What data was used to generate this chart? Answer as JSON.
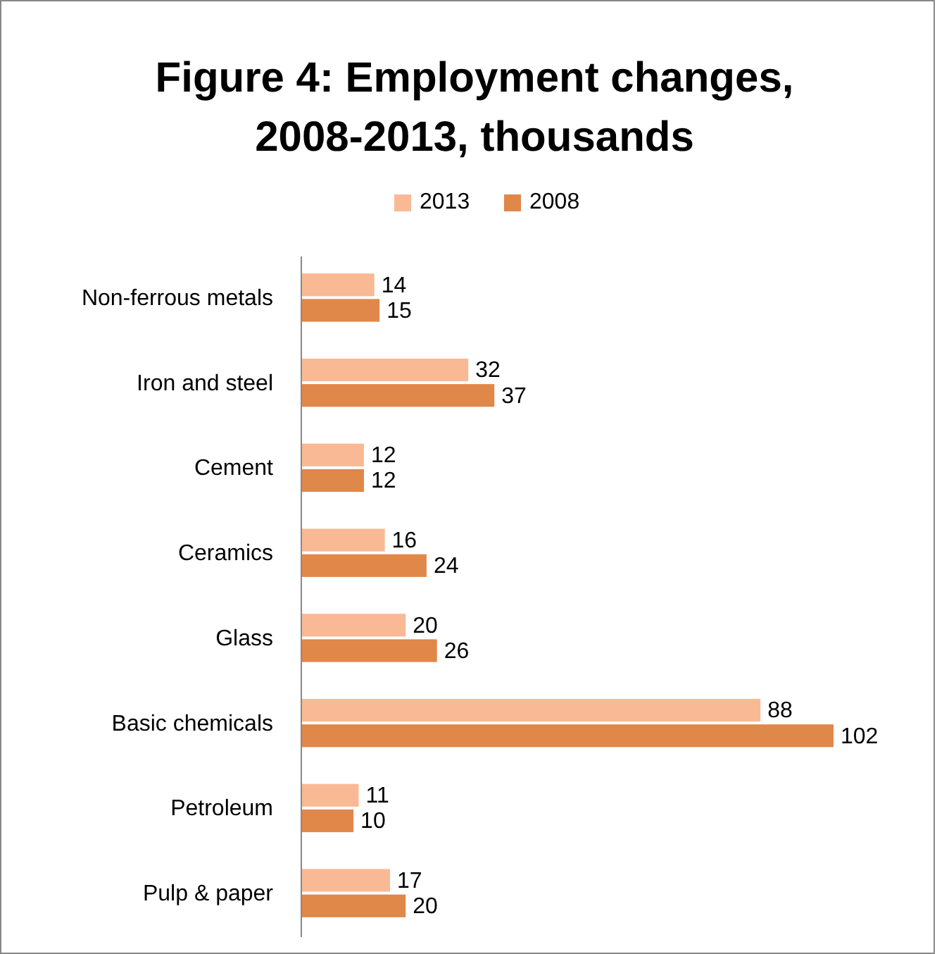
{
  "chart_data": {
    "type": "bar",
    "orientation": "horizontal",
    "title": "Figure 4: Employment changes, 2008-2013, thousands",
    "categories": [
      "Non-ferrous metals",
      "Iron and steel",
      "Cement",
      "Ceramics",
      "Glass",
      "Basic chemicals",
      "Petroleum",
      "Pulp & paper"
    ],
    "series": [
      {
        "name": "2013",
        "color": "#f9b995",
        "values": [
          14,
          32,
          12,
          16,
          20,
          88,
          11,
          17
        ]
      },
      {
        "name": "2008",
        "color": "#e0874a",
        "values": [
          15,
          37,
          12,
          24,
          26,
          102,
          10,
          20
        ]
      }
    ],
    "tick_labels": "y",
    "data_labels": true,
    "legend": "top",
    "grid": false
  }
}
